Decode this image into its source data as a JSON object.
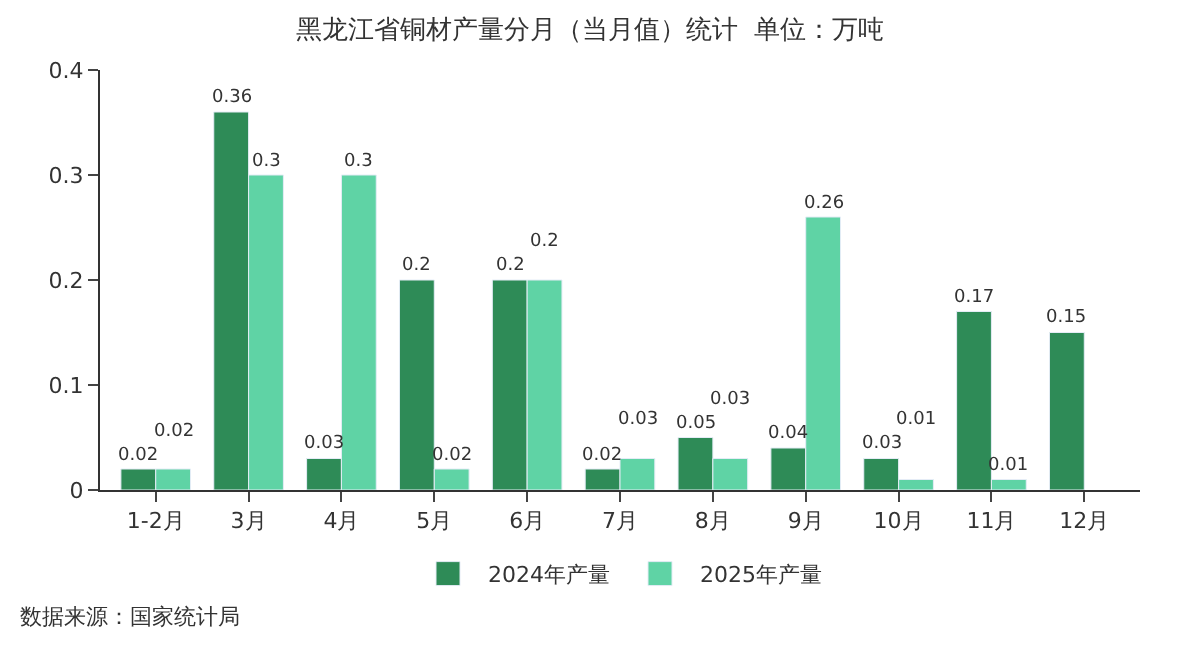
{
  "chart_data": {
    "type": "bar",
    "title": "黑龙江省铜材产量分月（当月值）统计  单位：万吨",
    "categories": [
      "1-2月",
      "3月",
      "4月",
      "5月",
      "6月",
      "7月",
      "8月",
      "9月",
      "10月",
      "11月",
      "12月"
    ],
    "series": [
      {
        "name": "2024年产量",
        "color": "#2e8b57",
        "values": [
          0.02,
          0.36,
          0.03,
          0.2,
          0.2,
          0.02,
          0.05,
          0.04,
          0.03,
          0.17,
          0.15
        ]
      },
      {
        "name": "2025年产量",
        "color": "#5fd3a5",
        "values": [
          0.02,
          0.3,
          0.3,
          0.02,
          0.2,
          0.03,
          0.03,
          0.26,
          0.01,
          0.01,
          null
        ]
      }
    ],
    "ylim": [
      0,
      0.4
    ],
    "yticks": [
      0,
      0.1,
      0.2,
      0.3,
      0.4
    ],
    "legend": "bottom",
    "data_labels": true,
    "annotations": [
      "数据来源：国家统计局"
    ]
  }
}
